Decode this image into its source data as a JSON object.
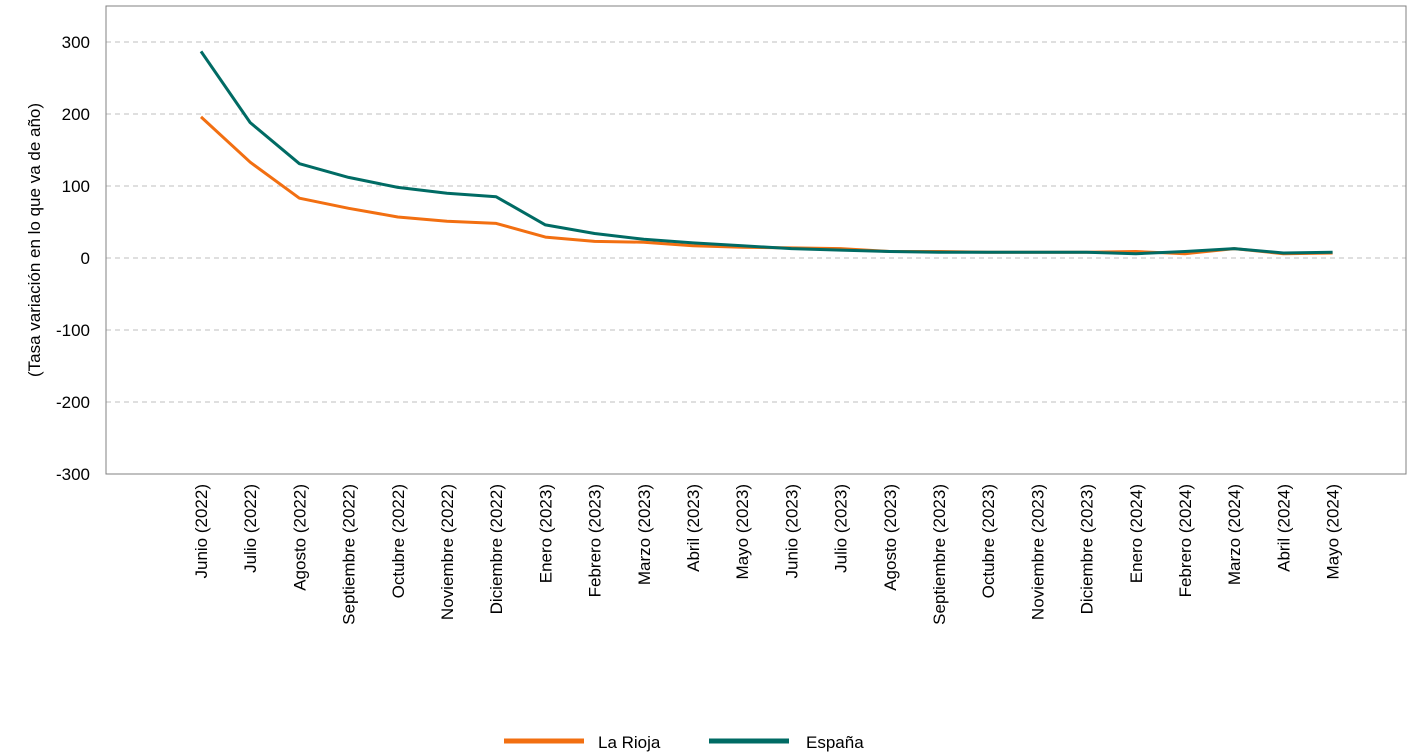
{
  "chart_data": {
    "type": "line",
    "title": "",
    "xlabel": "",
    "ylabel": "(Tasa variación en lo que va de año)",
    "ylim": [
      -300,
      300
    ],
    "yticks": [
      -300,
      -200,
      -100,
      0,
      100,
      200,
      300
    ],
    "grid": "horizontal-dashed",
    "legend_position": "bottom-center",
    "categories": [
      "Junio (2022)",
      "Julio (2022)",
      "Agosto (2022)",
      "Septiembre (2022)",
      "Octubre (2022)",
      "Noviembre (2022)",
      "Diciembre (2022)",
      "Enero (2023)",
      "Febrero (2023)",
      "Marzo (2023)",
      "Abril (2023)",
      "Mayo (2023)",
      "Junio (2023)",
      "Julio (2023)",
      "Agosto (2023)",
      "Septiembre (2023)",
      "Octubre (2023)",
      "Noviembre (2023)",
      "Diciembre (2023)",
      "Enero (2024)",
      "Febrero (2024)",
      "Marzo (2024)",
      "Abril (2024)",
      "Mayo (2024)"
    ],
    "series": [
      {
        "name": "La Rioja",
        "color": "#F26F11",
        "values": [
          196,
          133,
          83,
          69,
          57,
          51,
          48,
          29,
          23,
          22,
          17,
          15,
          14,
          13,
          9,
          9,
          8,
          8,
          8,
          9,
          6,
          13,
          6,
          7
        ]
      },
      {
        "name": "España",
        "color": "#006B64",
        "values": [
          287,
          188,
          131,
          112,
          98,
          90,
          85,
          46,
          34,
          26,
          21,
          17,
          13,
          11,
          9,
          8,
          8,
          8,
          8,
          6,
          9,
          13,
          7,
          8
        ]
      }
    ]
  }
}
